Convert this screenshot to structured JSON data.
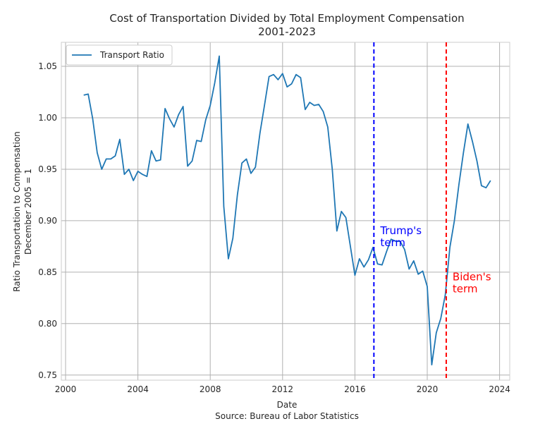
{
  "chart_data": {
    "type": "line",
    "title": "Cost of Transportation Divided by Total Employment Compensation",
    "subtitle": "2001-2023",
    "xlabel": "Date",
    "source": "Source: Bureau of Labor Statistics",
    "ylabel_line1": "Ratio Transportation to Compensation",
    "ylabel_line2": "December 2005 = 1",
    "xlim": [
      2000,
      2024.3
    ],
    "ylim": [
      0.745,
      1.072
    ],
    "grid": true,
    "legend_position": "top-left",
    "x_ticks": [
      2000,
      2004,
      2008,
      2012,
      2016,
      2020,
      2024
    ],
    "x_tick_labels": [
      "2000",
      "2004",
      "2008",
      "2012",
      "2016",
      "2020",
      "2024"
    ],
    "y_ticks": [
      0.75,
      0.8,
      0.85,
      0.9,
      0.95,
      1.0,
      1.05
    ],
    "y_tick_labels": [
      "0.75",
      "0.80",
      "0.85",
      "0.90",
      "0.95",
      "1.00",
      "1.05"
    ],
    "series": [
      {
        "name": "Transport Ratio",
        "color": "#1f77b4",
        "x": [
          2001.0,
          2001.25,
          2001.5,
          2001.75,
          2002.0,
          2002.25,
          2002.5,
          2002.75,
          2003.0,
          2003.25,
          2003.5,
          2003.75,
          2004.0,
          2004.25,
          2004.5,
          2004.75,
          2005.0,
          2005.25,
          2005.5,
          2005.75,
          2006.0,
          2006.25,
          2006.5,
          2006.75,
          2007.0,
          2007.25,
          2007.5,
          2007.75,
          2008.0,
          2008.25,
          2008.5,
          2008.75,
          2009.0,
          2009.25,
          2009.5,
          2009.75,
          2010.0,
          2010.25,
          2010.5,
          2010.75,
          2011.0,
          2011.25,
          2011.5,
          2011.75,
          2012.0,
          2012.25,
          2012.5,
          2012.75,
          2013.0,
          2013.25,
          2013.5,
          2013.75,
          2014.0,
          2014.25,
          2014.5,
          2014.75,
          2015.0,
          2015.25,
          2015.5,
          2015.75,
          2016.0,
          2016.25,
          2016.5,
          2016.75,
          2017.0,
          2017.25,
          2017.5,
          2017.75,
          2018.0,
          2018.25,
          2018.5,
          2018.75,
          2019.0,
          2019.25,
          2019.5,
          2019.75,
          2020.0,
          2020.25,
          2020.5,
          2020.75,
          2021.0,
          2021.25,
          2021.5,
          2021.75,
          2022.0,
          2022.25,
          2022.5,
          2022.75,
          2023.0,
          2023.25,
          2023.5
        ],
        "values": [
          1.022,
          1.023,
          0.999,
          0.966,
          0.95,
          0.96,
          0.96,
          0.963,
          0.979,
          0.945,
          0.95,
          0.939,
          0.948,
          0.945,
          0.943,
          0.968,
          0.958,
          0.959,
          1.009,
          0.999,
          0.991,
          1.003,
          1.011,
          0.953,
          0.958,
          0.978,
          0.977,
          0.998,
          1.012,
          1.034,
          1.06,
          0.914,
          0.863,
          0.883,
          0.925,
          0.956,
          0.96,
          0.946,
          0.952,
          0.985,
          1.012,
          1.04,
          1.042,
          1.037,
          1.043,
          1.03,
          1.033,
          1.042,
          1.039,
          1.008,
          1.015,
          1.012,
          1.013,
          1.006,
          0.991,
          0.95,
          0.89,
          0.909,
          0.903,
          0.875,
          0.847,
          0.863,
          0.855,
          0.862,
          0.874,
          0.858,
          0.857,
          0.87,
          0.882,
          0.88,
          0.88,
          0.872,
          0.853,
          0.861,
          0.848,
          0.851,
          0.836,
          0.76,
          0.791,
          0.805,
          0.828,
          0.874,
          0.9,
          0.935,
          0.966,
          0.994,
          0.977,
          0.958,
          0.934,
          0.932,
          0.939
        ]
      }
    ],
    "vlines": [
      {
        "x": 2017.05,
        "color": "#0000ff",
        "style": "dashed",
        "label_line1": "Trump's",
        "label_line2": "term",
        "label_y": 0.887
      },
      {
        "x": 2021.05,
        "color": "#ff0000",
        "style": "dashed",
        "label_line1": "Biden's",
        "label_line2": "term",
        "label_y": 0.842
      }
    ]
  }
}
